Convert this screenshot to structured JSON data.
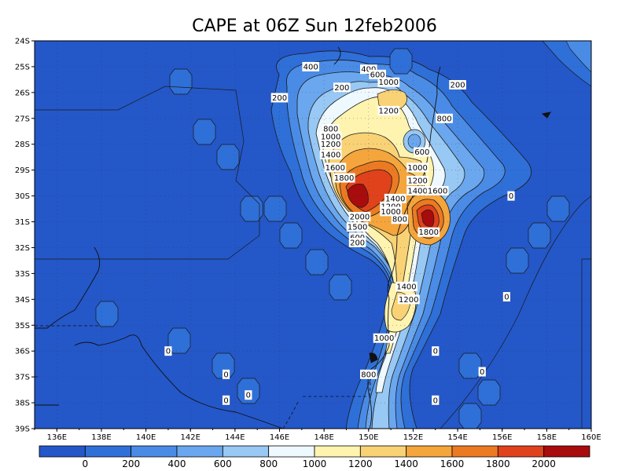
{
  "title": "CAPE at 06Z Sun 12feb2006",
  "map": {
    "x_ticks": [
      "136E",
      "138E",
      "140E",
      "142E",
      "144E",
      "146E",
      "148E",
      "150E",
      "152E",
      "154E",
      "156E",
      "158E",
      "160E"
    ],
    "y_ticks": [
      "24S",
      "25S",
      "26S",
      "27S",
      "28S",
      "29S",
      "30S",
      "31S",
      "32S",
      "33S",
      "34S",
      "35S",
      "36S",
      "37S",
      "38S",
      "39S"
    ],
    "lon_range": [
      135,
      160
    ],
    "lat_range": [
      -39,
      -24
    ],
    "grid": "dotted"
  },
  "legend": {
    "labels": [
      "0",
      "200",
      "400",
      "600",
      "800",
      "1000",
      "1200",
      "1400",
      "1600",
      "1800",
      "2000"
    ],
    "colors": [
      "#2457c8",
      "#2f6fd8",
      "#4a8be6",
      "#6aa7ee",
      "#98c8f4",
      "#eef8ff",
      "#fff3b0",
      "#f9d276",
      "#f4a53c",
      "#ec7a22",
      "#e0421c",
      "#a80c0c"
    ]
  },
  "contour_labels": [
    {
      "text": "400",
      "lon": 147.4,
      "lat": -25.0
    },
    {
      "text": "200",
      "lon": 148.8,
      "lat": -25.8
    },
    {
      "text": "200",
      "lon": 146.0,
      "lat": -26.2
    },
    {
      "text": "400",
      "lon": 150.0,
      "lat": -25.1
    },
    {
      "text": "600",
      "lon": 150.4,
      "lat": -25.3
    },
    {
      "text": "1000",
      "lon": 150.9,
      "lat": -25.6
    },
    {
      "text": "1200",
      "lon": 150.9,
      "lat": -26.7
    },
    {
      "text": "200",
      "lon": 154.0,
      "lat": -25.7
    },
    {
      "text": "800",
      "lon": 153.4,
      "lat": -27.0
    },
    {
      "text": "800",
      "lon": 148.3,
      "lat": -27.4
    },
    {
      "text": "1000",
      "lon": 148.3,
      "lat": -27.7
    },
    {
      "text": "1200",
      "lon": 148.3,
      "lat": -28.0
    },
    {
      "text": "1400",
      "lon": 148.3,
      "lat": -28.4
    },
    {
      "text": "1600",
      "lon": 148.5,
      "lat": -28.9
    },
    {
      "text": "1800",
      "lon": 148.9,
      "lat": -29.3
    },
    {
      "text": "600",
      "lon": 152.4,
      "lat": -28.3
    },
    {
      "text": "1000",
      "lon": 152.2,
      "lat": -28.9
    },
    {
      "text": "1200",
      "lon": 152.2,
      "lat": -29.4
    },
    {
      "text": "1400",
      "lon": 152.2,
      "lat": -29.8
    },
    {
      "text": "1400",
      "lon": 151.2,
      "lat": -30.1
    },
    {
      "text": "1600",
      "lon": 153.1,
      "lat": -29.8
    },
    {
      "text": "1200",
      "lon": 151.0,
      "lat": -30.4
    },
    {
      "text": "1000",
      "lon": 151.0,
      "lat": -30.6
    },
    {
      "text": "800",
      "lon": 151.4,
      "lat": -30.9
    },
    {
      "text": "2000",
      "lon": 149.6,
      "lat": -30.8
    },
    {
      "text": "1500",
      "lon": 149.5,
      "lat": -31.2
    },
    {
      "text": "600",
      "lon": 149.5,
      "lat": -31.6
    },
    {
      "text": "200",
      "lon": 149.5,
      "lat": -31.8
    },
    {
      "text": "1800",
      "lon": 152.7,
      "lat": -31.4
    },
    {
      "text": "0",
      "lon": 156.4,
      "lat": -30.0
    },
    {
      "text": "1400",
      "lon": 151.7,
      "lat": -33.5
    },
    {
      "text": "1200",
      "lon": 151.8,
      "lat": -34.0
    },
    {
      "text": "0",
      "lon": 156.2,
      "lat": -33.9
    },
    {
      "text": "1000",
      "lon": 150.7,
      "lat": -35.5
    },
    {
      "text": "0",
      "lon": 141.0,
      "lat": -36.0
    },
    {
      "text": "0",
      "lon": 153.0,
      "lat": -36.0
    },
    {
      "text": "800",
      "lon": 150.0,
      "lat": -36.9
    },
    {
      "text": "0",
      "lon": 155.1,
      "lat": -36.8
    },
    {
      "text": "0",
      "lon": 143.6,
      "lat": -36.9
    },
    {
      "text": "0",
      "lon": 143.6,
      "lat": -37.9
    },
    {
      "text": "0",
      "lon": 144.6,
      "lat": -37.7
    },
    {
      "text": "0",
      "lon": 153.0,
      "lat": -37.9
    }
  ]
}
